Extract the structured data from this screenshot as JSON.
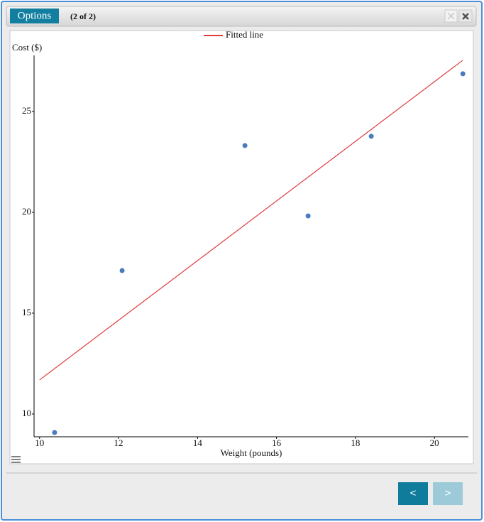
{
  "ui": {
    "options_button": "Options",
    "page_indicator": "(2 of 2)",
    "prev_button": "<",
    "next_button": ">"
  },
  "chart_data": {
    "type": "scatter",
    "x_label": "Weight (pounds)",
    "y_label": "Cost ($)",
    "xlim": [
      9.86,
      20.86
    ],
    "ylim": [
      8.87,
      27.78
    ],
    "xticks": [
      10,
      12,
      14,
      16,
      18,
      20
    ],
    "yticks": [
      10,
      15,
      20,
      25
    ],
    "legend": "top",
    "series": [
      {
        "color": "#4a7bbf",
        "x": [
          10.38,
          12.09,
          15.2,
          16.8,
          18.4,
          20.72
        ],
        "values": [
          9.08,
          17.11,
          23.31,
          19.82,
          23.77,
          26.87
        ]
      },
      {
        "name": "Fitted line",
        "type": "line",
        "color": "#e03a3a",
        "x": [
          10,
          20.72
        ],
        "values": [
          11.69,
          27.54
        ]
      }
    ]
  }
}
